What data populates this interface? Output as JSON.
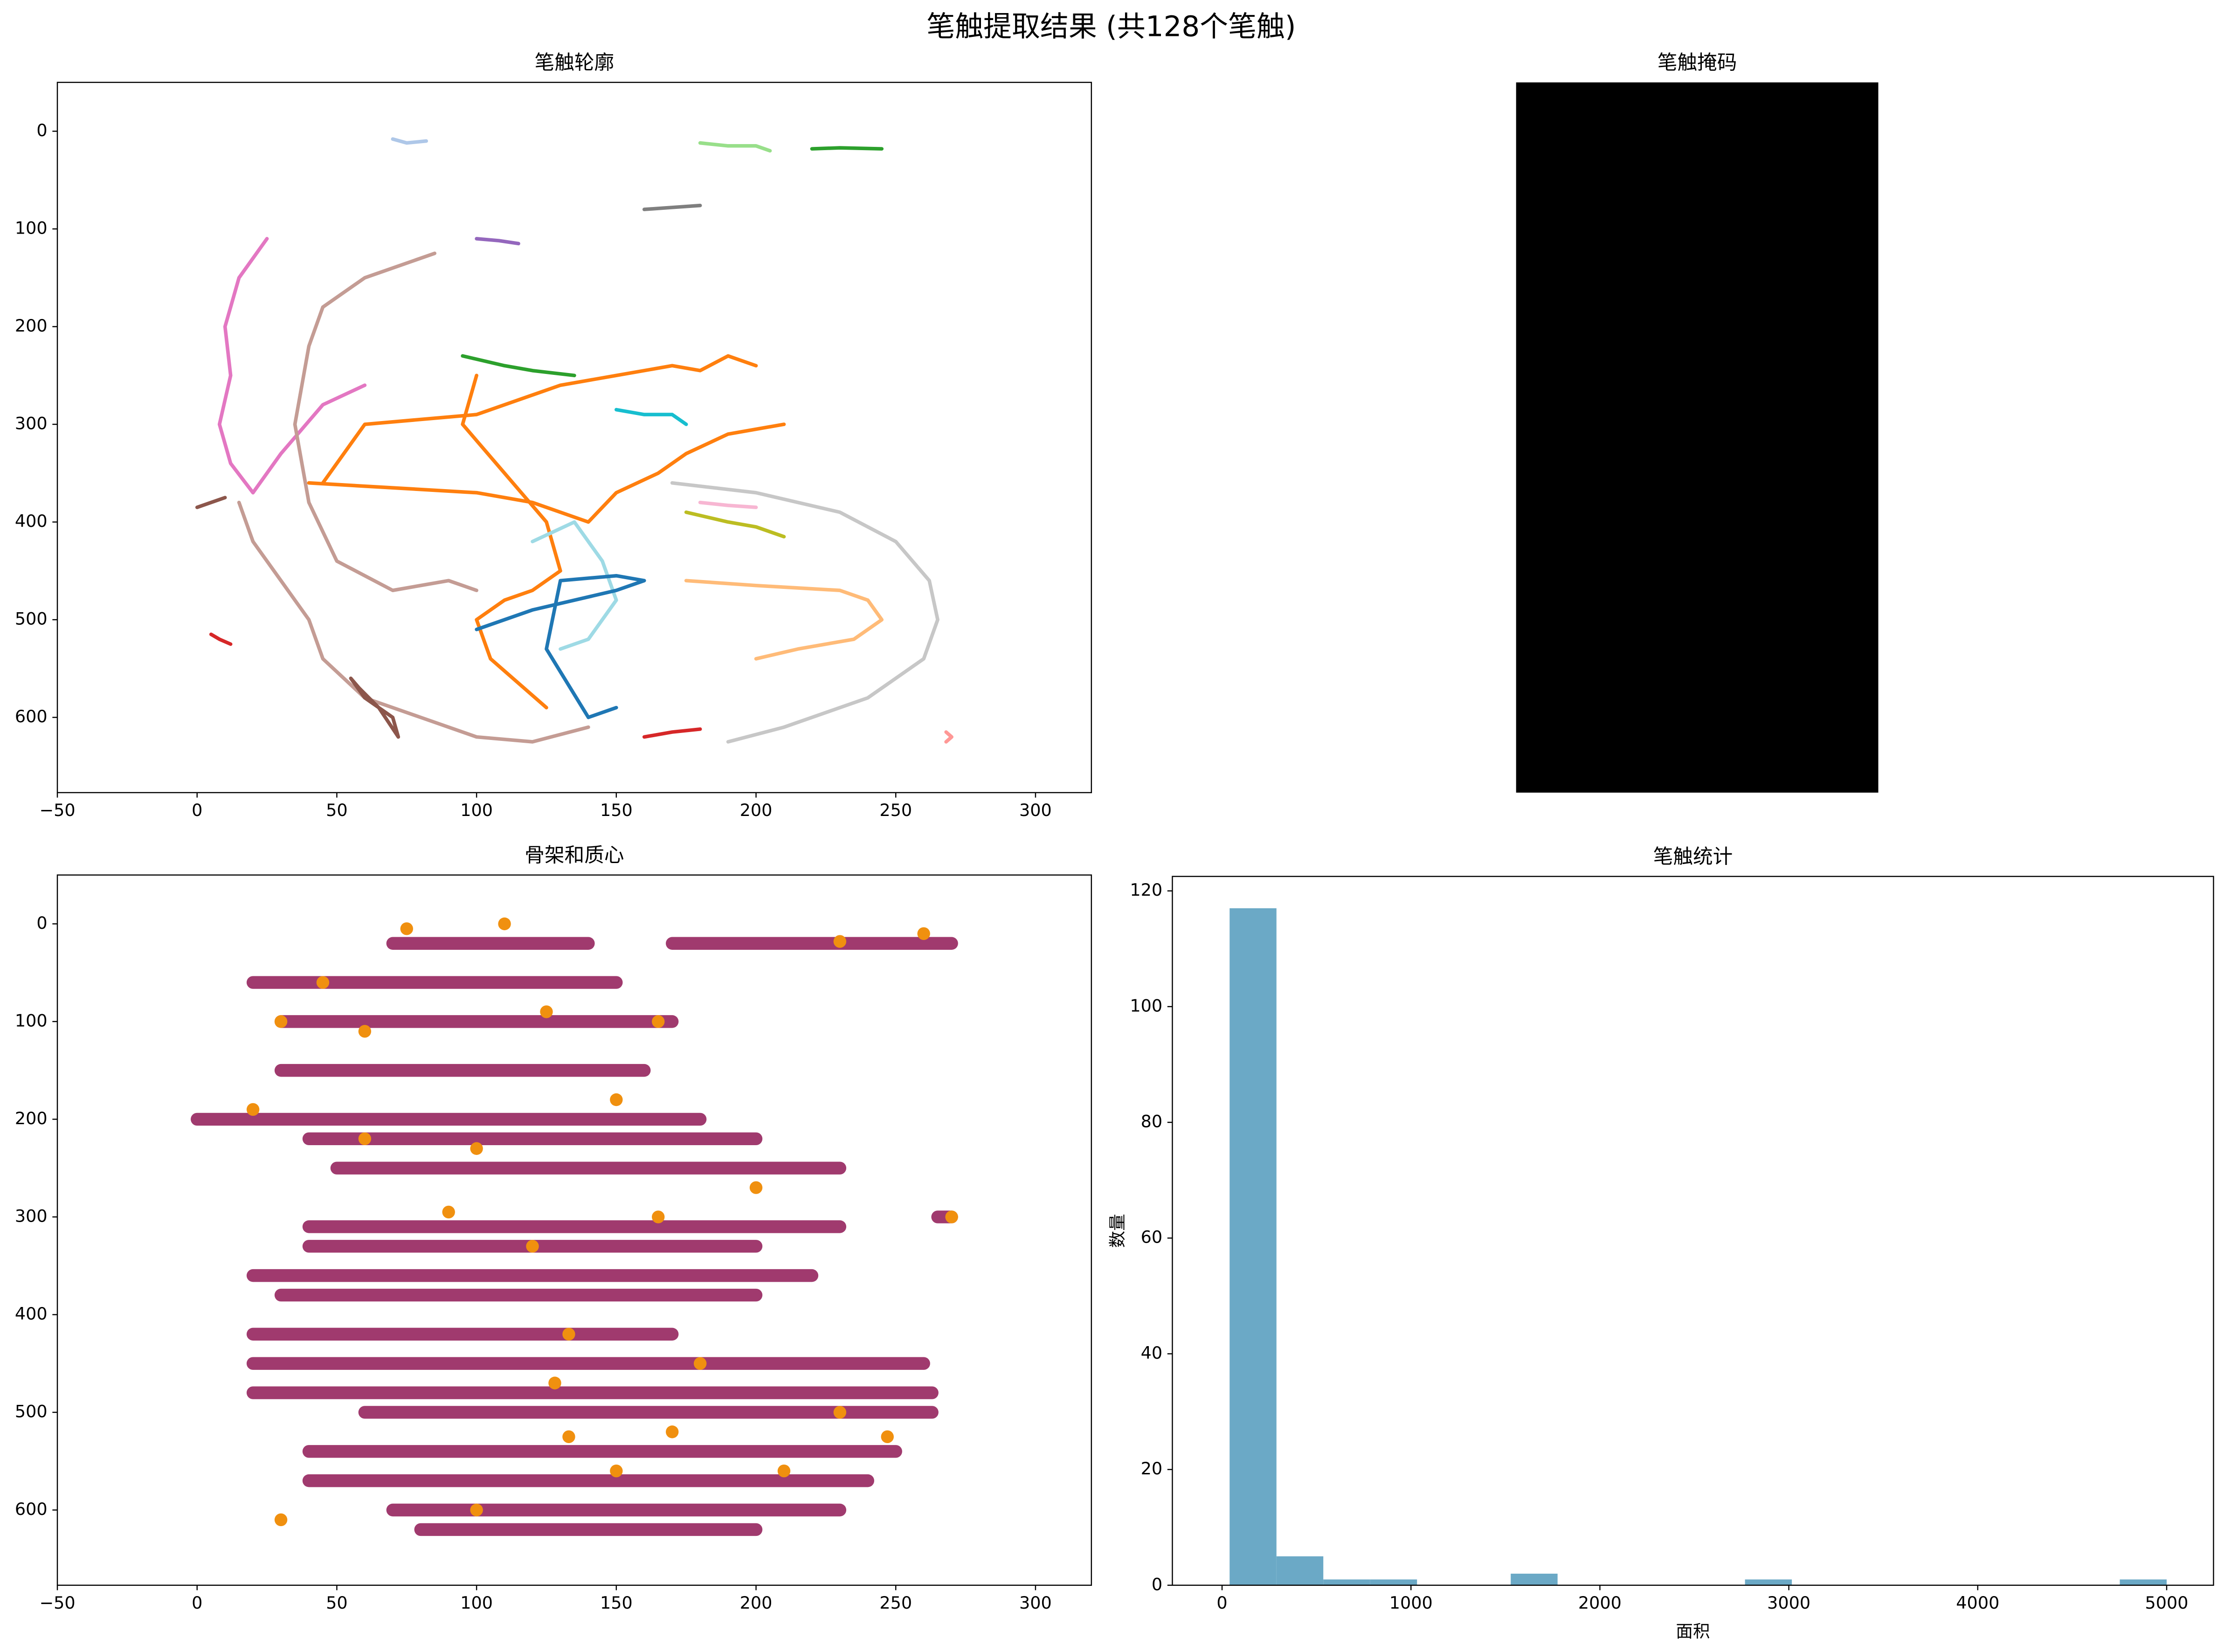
{
  "title": "笔触提取结果 (共128个笔触)",
  "chart_data": [
    {
      "type": "line",
      "title": "笔触轮廓",
      "xlim": [
        -50,
        320
      ],
      "ylim": [
        677,
        -50
      ],
      "xticks": [
        {
          "value": -50,
          "label": "−50"
        },
        0,
        50,
        100,
        150,
        200,
        250,
        300
      ],
      "yticks": [
        0,
        100,
        200,
        300,
        400,
        500,
        600
      ],
      "linewidth": 2.5,
      "series": [
        {
          "type": "line",
          "color": "#e377c2",
          "x": [
            25,
            15,
            10,
            12,
            8,
            12,
            20,
            30,
            45,
            60
          ],
          "y": [
            110,
            150,
            200,
            250,
            300,
            340,
            370,
            330,
            280,
            260
          ]
        },
        {
          "type": "line",
          "color": "#c49c94",
          "x": [
            85,
            60,
            45,
            40,
            35,
            40,
            50,
            70,
            90,
            100
          ],
          "y": [
            125,
            150,
            180,
            220,
            300,
            380,
            440,
            470,
            460,
            470
          ]
        },
        {
          "type": "line",
          "color": "#c49c94",
          "x": [
            15,
            20,
            30,
            40,
            45,
            60,
            80,
            100,
            120,
            140
          ],
          "y": [
            380,
            420,
            460,
            500,
            540,
            580,
            600,
            620,
            625,
            610
          ]
        },
        {
          "type": "line",
          "color": "#ff7f0e",
          "x": [
            45,
            60,
            100,
            130,
            150,
            170,
            180,
            190,
            200
          ],
          "y": [
            360,
            300,
            290,
            260,
            250,
            240,
            245,
            230,
            240
          ]
        },
        {
          "type": "line",
          "color": "#ff7f0e",
          "x": [
            40,
            70,
            100,
            120,
            140,
            150,
            165,
            175,
            190,
            210
          ],
          "y": [
            360,
            365,
            370,
            380,
            400,
            370,
            350,
            330,
            310,
            300
          ]
        },
        {
          "type": "line",
          "color": "#ff7f0e",
          "x": [
            100,
            95,
            110,
            125,
            130,
            120,
            110,
            100,
            105,
            125
          ],
          "y": [
            250,
            300,
            350,
            400,
            450,
            470,
            480,
            500,
            540,
            590
          ]
        },
        {
          "type": "line",
          "color": "#c7c7c7",
          "x": [
            170,
            200,
            230,
            250,
            262,
            265,
            260,
            240,
            210,
            190
          ],
          "y": [
            360,
            370,
            390,
            420,
            460,
            500,
            540,
            580,
            610,
            625
          ]
        },
        {
          "type": "line",
          "color": "#ffbb78",
          "x": [
            175,
            200,
            230,
            240,
            245,
            235,
            215,
            200
          ],
          "y": [
            460,
            465,
            470,
            480,
            500,
            520,
            530,
            540
          ]
        },
        {
          "type": "line",
          "color": "#9edae5",
          "x": [
            120,
            135,
            145,
            150,
            140,
            130
          ],
          "y": [
            420,
            400,
            440,
            480,
            520,
            530
          ]
        },
        {
          "type": "line",
          "color": "#1f77b4",
          "x": [
            100,
            120,
            150,
            160,
            150,
            130,
            125,
            140,
            150
          ],
          "y": [
            510,
            490,
            470,
            460,
            455,
            460,
            530,
            600,
            590
          ]
        },
        {
          "type": "line",
          "color": "#aec7e8",
          "x": [
            70,
            75,
            82
          ],
          "y": [
            8,
            12,
            10
          ]
        },
        {
          "type": "line",
          "color": "#2ca02c",
          "x": [
            220,
            230,
            245
          ],
          "y": [
            18,
            17,
            18
          ]
        },
        {
          "type": "line",
          "color": "#d62728",
          "x": [
            5,
            8,
            12
          ],
          "y": [
            515,
            520,
            525
          ]
        },
        {
          "type": "line",
          "color": "#8c564b",
          "x": [
            55,
            60,
            70,
            72,
            65,
            58,
            55
          ],
          "y": [
            560,
            580,
            600,
            620,
            590,
            570,
            560
          ]
        },
        {
          "type": "line",
          "color": "#17becf",
          "x": [
            150,
            160,
            170,
            175
          ],
          "y": [
            285,
            290,
            290,
            300
          ]
        },
        {
          "type": "line",
          "color": "#9467bd",
          "x": [
            100,
            108,
            115
          ],
          "y": [
            110,
            112,
            115
          ]
        },
        {
          "type": "line",
          "color": "#bcbd22",
          "x": [
            175,
            190,
            200,
            210
          ],
          "y": [
            390,
            400,
            405,
            415
          ]
        },
        {
          "type": "line",
          "color": "#2ca02c",
          "x": [
            95,
            110,
            120,
            135
          ],
          "y": [
            230,
            240,
            245,
            250
          ]
        },
        {
          "type": "line",
          "color": "#d62728",
          "x": [
            160,
            170,
            180
          ],
          "y": [
            620,
            615,
            612
          ]
        },
        {
          "type": "line",
          "color": "#98df8a",
          "x": [
            180,
            190,
            200,
            205
          ],
          "y": [
            12,
            15,
            15,
            20
          ]
        },
        {
          "type": "line",
          "color": "#f7b6d2",
          "x": [
            180,
            190,
            200
          ],
          "y": [
            380,
            383,
            385
          ]
        },
        {
          "type": "line",
          "color": "#ff9896",
          "x": [
            268,
            270,
            268
          ],
          "y": [
            615,
            620,
            625
          ]
        },
        {
          "type": "line",
          "color": "#7f7f7f",
          "x": [
            160,
            170,
            180
          ],
          "y": [
            80,
            78,
            76
          ]
        },
        {
          "type": "line",
          "color": "#8c564b",
          "x": [
            0,
            5,
            10
          ],
          "y": [
            385,
            380,
            375
          ]
        }
      ]
    },
    {
      "type": "image",
      "title": "笔触掩码"
    },
    {
      "type": "line",
      "title": "骨架和质心",
      "xlim": [
        -50,
        320
      ],
      "ylim": [
        677,
        -50
      ],
      "xticks": [
        {
          "value": -50,
          "label": "−50"
        },
        0,
        50,
        100,
        150,
        200,
        250,
        300
      ],
      "yticks": [
        0,
        100,
        200,
        300,
        400,
        500,
        600
      ],
      "linewidth": 9,
      "series": [
        {
          "type": "line",
          "color": "#a03a6e",
          "x": [
            70,
            140,
            null,
            170,
            270,
            null,
            20,
            150,
            null,
            30,
            170,
            null,
            30,
            160,
            null,
            0,
            180,
            null,
            40,
            200,
            null,
            50,
            230,
            null,
            40,
            230,
            null,
            40,
            200,
            null,
            20,
            220,
            null,
            30,
            200,
            null,
            20,
            170,
            null,
            20,
            260,
            null,
            20,
            263,
            null,
            60,
            263,
            null,
            40,
            250,
            null,
            40,
            240,
            null,
            70,
            230,
            null,
            80,
            200,
            null,
            265,
            270
          ],
          "y": [
            20,
            20,
            null,
            20,
            20,
            null,
            60,
            60,
            null,
            100,
            100,
            null,
            150,
            150,
            null,
            200,
            200,
            null,
            220,
            220,
            null,
            250,
            250,
            null,
            310,
            310,
            null,
            330,
            330,
            null,
            360,
            360,
            null,
            380,
            380,
            null,
            420,
            420,
            null,
            450,
            450,
            null,
            480,
            480,
            null,
            500,
            500,
            null,
            540,
            540,
            null,
            570,
            570,
            null,
            600,
            600,
            null,
            620,
            620,
            null,
            300,
            300
          ]
        },
        {
          "type": "scatter",
          "color": "#f0900f",
          "x": [
            110,
            75,
            45,
            30,
            60,
            125,
            165,
            20,
            60,
            100,
            150,
            165,
            200,
            120,
            133,
            128,
            180,
            230,
            247,
            133,
            100,
            150,
            210,
            260,
            230,
            270,
            90,
            170,
            30
          ],
          "y": [
            0,
            5,
            60,
            100,
            110,
            90,
            100,
            190,
            220,
            230,
            180,
            300,
            270,
            330,
            420,
            470,
            450,
            500,
            525,
            525,
            600,
            560,
            560,
            10,
            18,
            300,
            295,
            520,
            610
          ]
        }
      ]
    },
    {
      "type": "histogram",
      "title": "笔触统计",
      "xlabel": "面积",
      "ylabel": "数量",
      "color": "#6ba9c6",
      "bins": [
        40,
        288,
        536,
        784,
        1032,
        1280,
        1528,
        1776,
        2024,
        2272,
        2520,
        2768,
        3016,
        3264,
        3512,
        3760,
        4008,
        4256,
        4504,
        4752,
        5000
      ],
      "values": [
        117,
        5,
        1,
        1,
        0,
        0,
        2,
        0,
        0,
        0,
        0,
        1,
        0,
        0,
        0,
        0,
        0,
        0,
        0,
        1
      ],
      "xlim": [
        -263,
        5248
      ],
      "ylim": [
        0,
        122.5
      ],
      "xticks": [
        0,
        1000,
        2000,
        3000,
        4000,
        5000
      ],
      "yticks": [
        0,
        20,
        40,
        60,
        80,
        100,
        120
      ]
    }
  ]
}
